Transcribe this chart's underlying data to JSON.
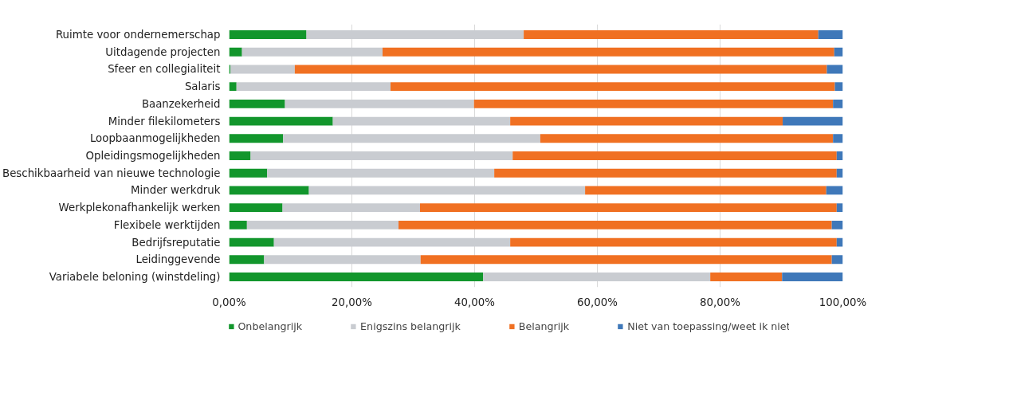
{
  "chart_data": {
    "type": "bar",
    "orientation": "horizontal",
    "stacked": true,
    "categories": [
      "Ruimte voor ondernemerschap",
      "Uitdagende projecten",
      "Sfeer en collegialiteit",
      "Salaris",
      "Baanzekerheid",
      "Minder filekilometers",
      "Loopbaanmogelijkheden",
      "Opleidingsmogelijkheden",
      "Beschikbaarheid van nieuwe technologie",
      "Minder werkdruk",
      "Werkplekonafhankelijk werken",
      "Flexibele werktijden",
      "Bedrijfsreputatie",
      "Leidinggevende",
      "Variabele beloning (winstdeling)"
    ],
    "series": [
      {
        "name": "Onbelangrijk",
        "color": "#12962c",
        "values": [
          12.6,
          2.1,
          0.2,
          1.2,
          9.1,
          16.9,
          8.8,
          3.5,
          6.2,
          13.0,
          8.7,
          2.9,
          7.3,
          5.7,
          41.4
        ]
      },
      {
        "name": "Enigszins belangrijk",
        "color": "#c9ccd1",
        "values": [
          35.4,
          22.9,
          10.5,
          25.1,
          30.8,
          28.9,
          41.9,
          42.7,
          37.0,
          45.0,
          22.4,
          24.7,
          38.5,
          25.5,
          37.0
        ]
      },
      {
        "name": "Belangrijk",
        "color": "#f07022",
        "values": [
          48.0,
          73.6,
          86.7,
          72.4,
          58.5,
          44.4,
          47.7,
          52.8,
          55.8,
          39.3,
          67.9,
          70.6,
          53.2,
          67.0,
          11.7
        ]
      },
      {
        "name": "Niet van toepassing/weet ik niet",
        "color": "#3f78b9",
        "values": [
          4.0,
          1.4,
          2.6,
          1.3,
          1.6,
          9.8,
          1.6,
          1.0,
          1.0,
          2.7,
          1.0,
          1.8,
          1.0,
          1.8,
          9.9
        ]
      }
    ],
    "xlim": [
      0,
      100
    ],
    "xticks": [
      {
        "value": 0,
        "label": "0,00%"
      },
      {
        "value": 20,
        "label": "20,00%"
      },
      {
        "value": 40,
        "label": "40,00%"
      },
      {
        "value": 60,
        "label": "60,00%"
      },
      {
        "value": 80,
        "label": "80,00%"
      },
      {
        "value": 100,
        "label": "100,00%"
      }
    ],
    "grid": "x",
    "legend": "bottom"
  }
}
